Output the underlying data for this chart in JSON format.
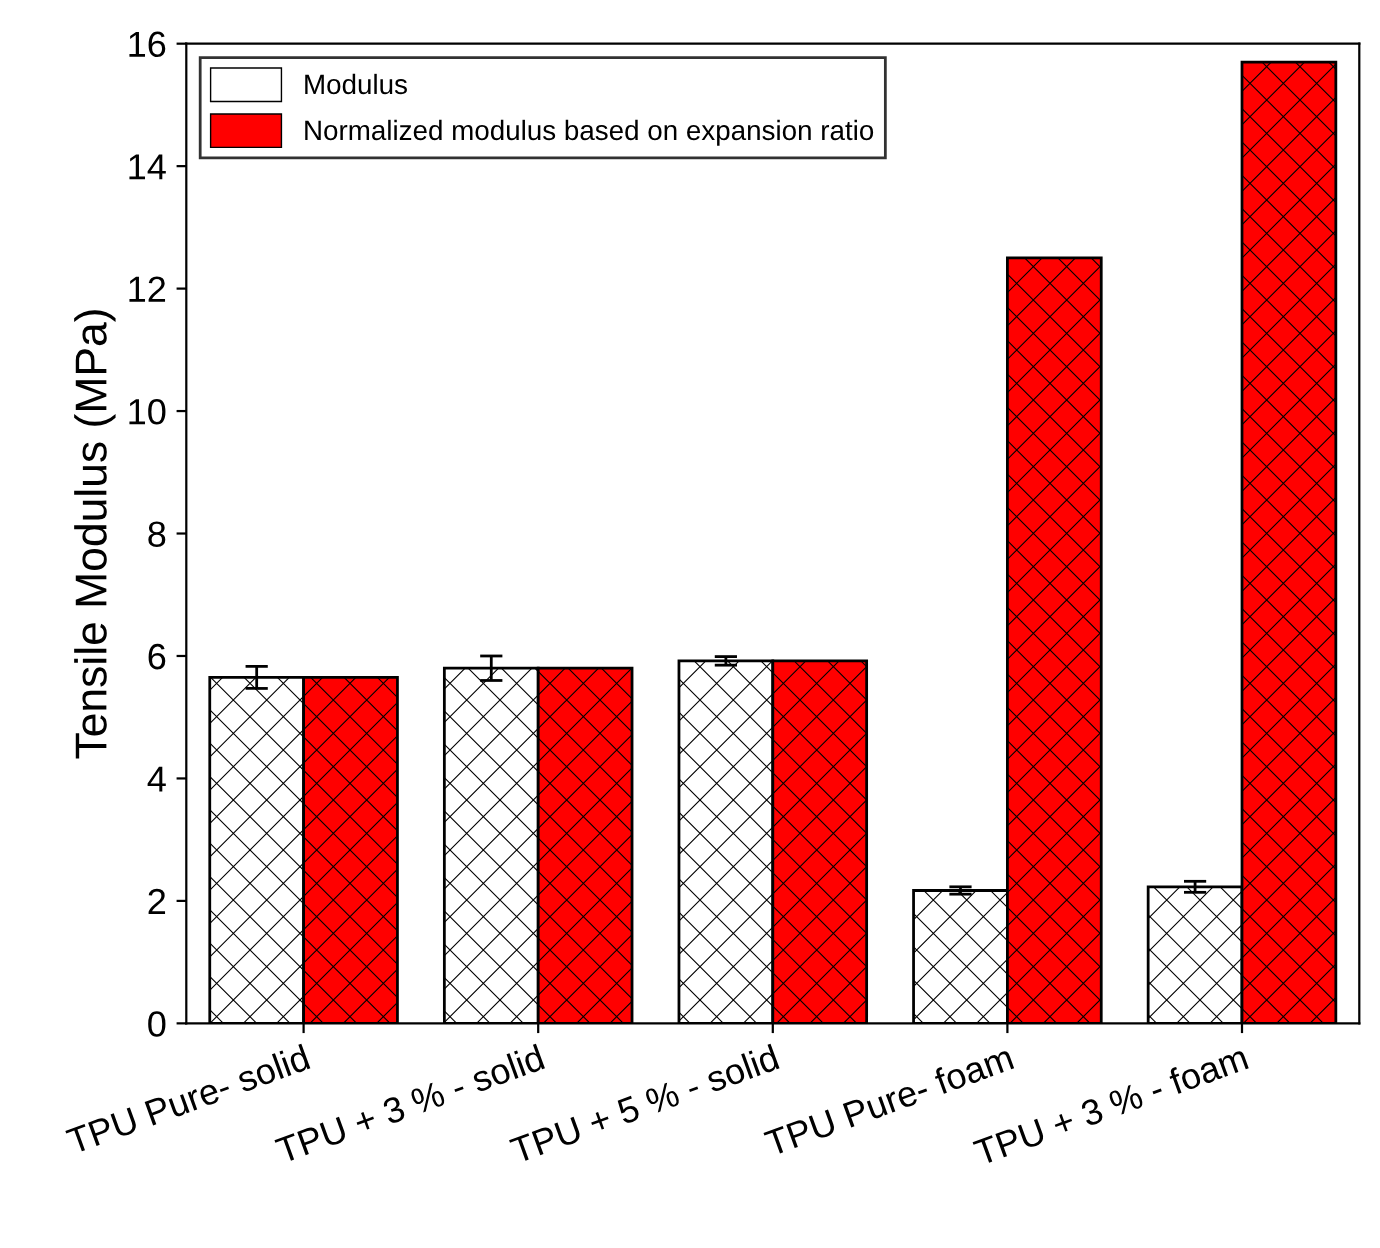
{
  "chart_data": {
    "type": "bar",
    "ylabel": "Tensile Modulus (MPa)",
    "categories": [
      "TPU Pure- solid",
      "TPU + 3 % - solid",
      "TPU + 5 % - solid",
      "TPU Pure- foam",
      "TPU + 3 % - foam"
    ],
    "series": [
      {
        "name": "Modulus",
        "color": "#ffffff",
        "values": [
          5.65,
          5.8,
          5.92,
          2.17,
          2.23
        ],
        "errors": [
          0.18,
          0.2,
          0.07,
          0.06,
          0.09
        ]
      },
      {
        "name": "Normalized modulus based on expansion ratio",
        "color": "#ff0000",
        "values": [
          5.65,
          5.8,
          5.92,
          12.5,
          15.7
        ]
      }
    ],
    "ylim": [
      0,
      16
    ],
    "yticks": [
      0,
      2,
      4,
      6,
      8,
      10,
      12,
      14,
      16
    ],
    "grid": false,
    "legend": "top left"
  }
}
